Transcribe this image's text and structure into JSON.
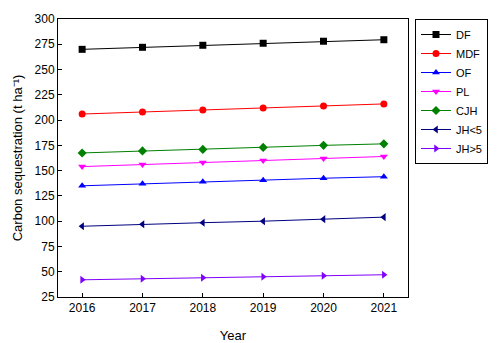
{
  "chart_data": {
    "type": "line",
    "x_label": "Year",
    "y_label": "Carbon sequestration (t ha⁻¹)",
    "x": [
      2016,
      2017,
      2018,
      2019,
      2020,
      2021
    ],
    "xlim": [
      2015.6,
      2021.4
    ],
    "xticks": [
      2016,
      2017,
      2018,
      2019,
      2020,
      2021
    ],
    "ylim": [
      25,
      300
    ],
    "yticks": [
      25,
      50,
      75,
      100,
      125,
      150,
      175,
      200,
      225,
      250,
      275,
      300
    ],
    "grid": false,
    "legend": "upper right",
    "series": [
      {
        "name": "DF",
        "color": "#000000",
        "marker": "square",
        "values": [
          270,
          272,
          274,
          276,
          278,
          279.5
        ]
      },
      {
        "name": "MDF",
        "color": "#ff0000",
        "marker": "circle",
        "values": [
          206,
          208,
          210,
          212,
          214,
          216
        ]
      },
      {
        "name": "OF",
        "color": "#0000ff",
        "marker": "triangle-up",
        "values": [
          135,
          137,
          139,
          140.5,
          142.5,
          144
        ]
      },
      {
        "name": "PL",
        "color": "#ff00ff",
        "marker": "triangle-down",
        "values": [
          154,
          156,
          158,
          160,
          162,
          164
        ]
      },
      {
        "name": "CJH",
        "color": "#008000",
        "marker": "diamond",
        "values": [
          167.5,
          169.5,
          171,
          173,
          175,
          176.5
        ]
      },
      {
        "name": "JH<5",
        "color": "#000080",
        "marker": "triangle-left",
        "values": [
          95,
          97,
          98.5,
          100,
          102,
          104
        ]
      },
      {
        "name": "JH>5",
        "color": "#8000ff",
        "marker": "triangle-right",
        "values": [
          42,
          43,
          44,
          45,
          46,
          47
        ]
      }
    ]
  }
}
